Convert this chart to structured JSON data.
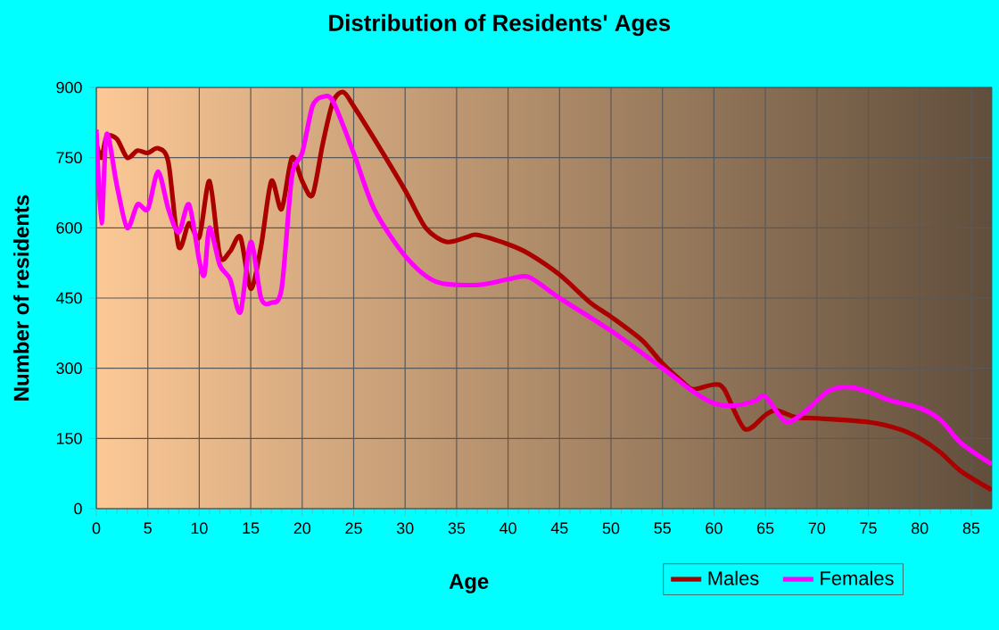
{
  "chart_data": {
    "type": "line",
    "title": "Distribution of Residents' Ages",
    "xlabel": "Age",
    "ylabel": "Number of residents",
    "xlim": [
      0,
      87
    ],
    "xticks": [
      0,
      5,
      10,
      15,
      20,
      25,
      30,
      35,
      40,
      45,
      50,
      55,
      60,
      65,
      70,
      75,
      80,
      85
    ],
    "ylim": [
      0,
      900
    ],
    "yticks": [
      0,
      150,
      300,
      450,
      600,
      750,
      900
    ],
    "grid": true,
    "legend": "bottom right",
    "series": [
      {
        "name": "Males",
        "color": "#aa0000",
        "x": [
          0,
          0.5,
          1,
          2,
          3,
          4,
          5,
          6,
          7,
          8,
          9,
          10,
          11,
          12,
          13,
          14,
          15,
          16,
          17,
          18,
          19,
          20,
          21,
          22,
          23,
          24,
          25,
          27,
          30,
          32,
          34,
          36,
          37,
          40,
          42,
          45,
          48,
          50,
          53,
          55,
          57,
          58,
          60,
          61,
          63,
          65,
          66,
          68,
          70,
          75,
          78,
          80,
          82,
          84,
          87
        ],
        "values": [
          780,
          750,
          795,
          790,
          750,
          765,
          760,
          770,
          740,
          560,
          610,
          580,
          700,
          540,
          550,
          580,
          470,
          560,
          700,
          640,
          750,
          700,
          670,
          780,
          870,
          890,
          860,
          790,
          680,
          600,
          570,
          580,
          585,
          565,
          545,
          500,
          440,
          410,
          360,
          310,
          270,
          255,
          265,
          255,
          170,
          200,
          210,
          195,
          193,
          185,
          170,
          150,
          120,
          80,
          40
        ]
      },
      {
        "name": "Females",
        "color": "#ff00ff",
        "x": [
          0,
          0.5,
          1,
          2,
          3,
          4,
          5,
          6,
          7,
          8,
          9,
          10,
          10.5,
          11,
          12,
          13,
          14,
          15,
          16,
          17,
          18,
          19,
          20,
          21,
          22,
          23,
          25,
          27,
          30,
          33,
          37,
          40,
          42,
          45,
          50,
          55,
          58,
          60,
          62,
          64,
          65,
          67,
          69,
          71,
          73,
          75,
          77,
          80,
          82,
          84,
          87
        ],
        "values": [
          810,
          610,
          800,
          690,
          600,
          650,
          640,
          720,
          640,
          590,
          650,
          530,
          500,
          600,
          520,
          490,
          420,
          570,
          450,
          440,
          470,
          710,
          760,
          860,
          880,
          870,
          760,
          640,
          540,
          485,
          478,
          490,
          495,
          450,
          380,
          300,
          250,
          225,
          220,
          230,
          240,
          185,
          210,
          250,
          260,
          250,
          232,
          215,
          190,
          140,
          95
        ]
      }
    ]
  }
}
